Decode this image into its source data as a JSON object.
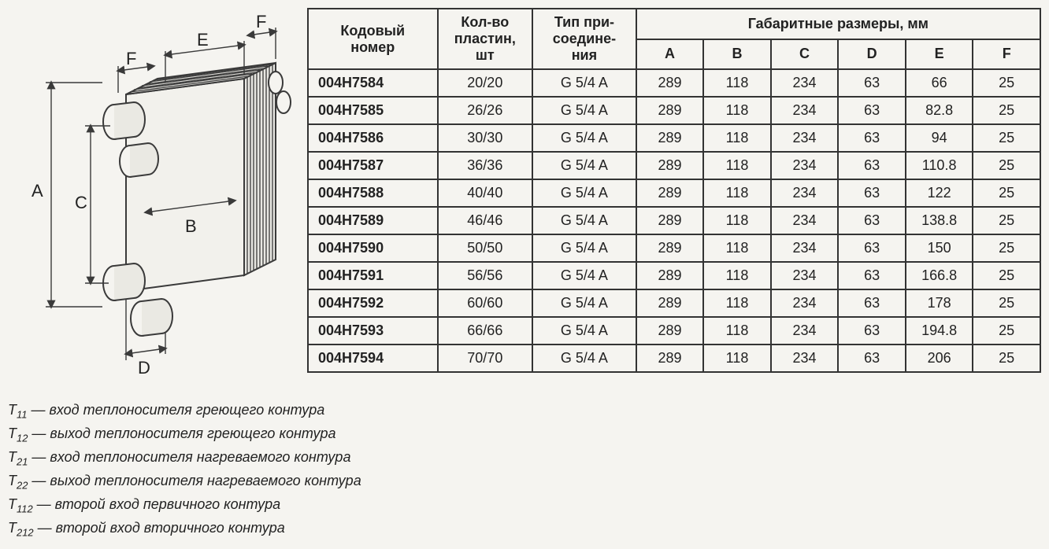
{
  "diagram": {
    "labels": {
      "A": "A",
      "B": "B",
      "C": "C",
      "D": "D",
      "E": "E",
      "F": "F"
    },
    "stroke_color": "#3a3a3a",
    "fill_light": "#f2f1ec",
    "fill_mid": "#e8e7e2"
  },
  "table": {
    "headers": {
      "code": "Кодовый номер",
      "plates": "Кол-во пластин, шт",
      "conn": "Тип при- соедине- ния",
      "dims_group": "Габаритные размеры, мм",
      "A": "A",
      "B": "B",
      "C": "C",
      "D": "D",
      "E": "E",
      "F": "F"
    },
    "rows": [
      {
        "code": "004H7584",
        "plates": "20/20",
        "conn": "G 5/4 A",
        "A": "289",
        "B": "118",
        "C": "234",
        "D": "63",
        "E": "66",
        "F": "25"
      },
      {
        "code": "004H7585",
        "plates": "26/26",
        "conn": "G 5/4 A",
        "A": "289",
        "B": "118",
        "C": "234",
        "D": "63",
        "E": "82.8",
        "F": "25"
      },
      {
        "code": "004H7586",
        "plates": "30/30",
        "conn": "G 5/4 A",
        "A": "289",
        "B": "118",
        "C": "234",
        "D": "63",
        "E": "94",
        "F": "25"
      },
      {
        "code": "004H7587",
        "plates": "36/36",
        "conn": "G 5/4 A",
        "A": "289",
        "B": "118",
        "C": "234",
        "D": "63",
        "E": "110.8",
        "F": "25"
      },
      {
        "code": "004H7588",
        "plates": "40/40",
        "conn": "G 5/4 A",
        "A": "289",
        "B": "118",
        "C": "234",
        "D": "63",
        "E": "122",
        "F": "25"
      },
      {
        "code": "004H7589",
        "plates": "46/46",
        "conn": "G 5/4 A",
        "A": "289",
        "B": "118",
        "C": "234",
        "D": "63",
        "E": "138.8",
        "F": "25"
      },
      {
        "code": "004H7590",
        "plates": "50/50",
        "conn": "G 5/4 A",
        "A": "289",
        "B": "118",
        "C": "234",
        "D": "63",
        "E": "150",
        "F": "25"
      },
      {
        "code": "004H7591",
        "plates": "56/56",
        "conn": "G 5/4 A",
        "A": "289",
        "B": "118",
        "C": "234",
        "D": "63",
        "E": "166.8",
        "F": "25"
      },
      {
        "code": "004H7592",
        "plates": "60/60",
        "conn": "G 5/4 A",
        "A": "289",
        "B": "118",
        "C": "234",
        "D": "63",
        "E": "178",
        "F": "25"
      },
      {
        "code": "004H7593",
        "plates": "66/66",
        "conn": "G 5/4 A",
        "A": "289",
        "B": "118",
        "C": "234",
        "D": "63",
        "E": "194.8",
        "F": "25"
      },
      {
        "code": "004H7594",
        "plates": "70/70",
        "conn": "G 5/4 A",
        "A": "289",
        "B": "118",
        "C": "234",
        "D": "63",
        "E": "206",
        "F": "25"
      }
    ],
    "border_color": "#333333",
    "font_size": 18
  },
  "legend": [
    {
      "sym": "T",
      "sub": "11",
      "text": " — вход теплоносителя греющего контура"
    },
    {
      "sym": "T",
      "sub": "12",
      "text": " — выход теплоносителя греющего контура"
    },
    {
      "sym": "T",
      "sub": "21",
      "text": " — вход теплоносителя нагреваемого контура"
    },
    {
      "sym": "T",
      "sub": "22",
      "text": " — выход теплоносителя нагреваемого контура"
    },
    {
      "sym": "T",
      "sub": "112",
      "text": " — второй вход первичного контура"
    },
    {
      "sym": "T",
      "sub": "212",
      "text": " — второй вход вторичного контура"
    }
  ]
}
